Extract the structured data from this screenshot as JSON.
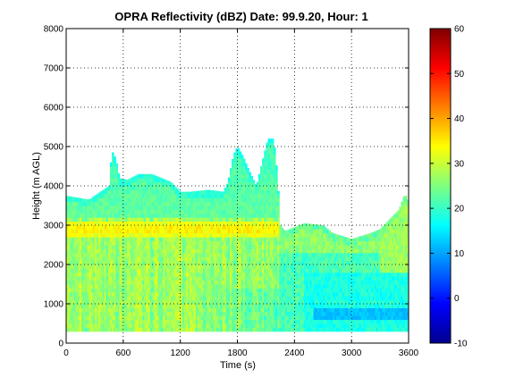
{
  "chart_data": {
    "type": "heatmap",
    "title": "OPRA Reflectivity (dBZ)  Date: 99.9.20, Hour: 1",
    "xlabel": "Time (s)",
    "ylabel": "Height (m AGL)",
    "xlim": [
      0,
      3600
    ],
    "ylim": [
      0,
      8000
    ],
    "x_ticks": [
      "0",
      "600",
      "1200",
      "1800",
      "2400",
      "3000",
      "3600"
    ],
    "y_ticks": [
      "0",
      "1000",
      "2000",
      "3000",
      "4000",
      "5000",
      "6000",
      "7000",
      "8000"
    ],
    "grid": true,
    "colorbar": {
      "range": [
        -10,
        60
      ],
      "ticks": [
        "-10",
        "0",
        "10",
        "20",
        "30",
        "40",
        "50",
        "60"
      ],
      "colormap": "jet"
    },
    "echo": {
      "base_height": 300,
      "top_profile": [
        [
          0,
          3750
        ],
        [
          120,
          3700
        ],
        [
          240,
          3650
        ],
        [
          360,
          3850
        ],
        [
          450,
          4000
        ],
        [
          480,
          4900
        ],
        [
          520,
          4700
        ],
        [
          560,
          4200
        ],
        [
          640,
          4150
        ],
        [
          760,
          4300
        ],
        [
          900,
          4300
        ],
        [
          1000,
          4200
        ],
        [
          1100,
          4100
        ],
        [
          1200,
          3850
        ],
        [
          1300,
          3850
        ],
        [
          1500,
          3900
        ],
        [
          1650,
          3850
        ],
        [
          1700,
          4100
        ],
        [
          1760,
          4800
        ],
        [
          1800,
          5000
        ],
        [
          1860,
          4750
        ],
        [
          1920,
          4400
        ],
        [
          2000,
          4000
        ],
        [
          2060,
          4600
        ],
        [
          2120,
          5200
        ],
        [
          2180,
          5200
        ],
        [
          2220,
          4300
        ],
        [
          2250,
          3000
        ],
        [
          2300,
          2850
        ],
        [
          2500,
          3050
        ],
        [
          2700,
          3000
        ],
        [
          2800,
          2800
        ],
        [
          3000,
          2650
        ],
        [
          3200,
          2800
        ],
        [
          3300,
          2900
        ],
        [
          3400,
          3150
        ],
        [
          3500,
          3400
        ],
        [
          3560,
          3800
        ],
        [
          3600,
          3600
        ]
      ],
      "base_dbz": 27,
      "bright_band": {
        "x_range": [
          0,
          2250
        ],
        "height": 2900,
        "dbz": 35
      },
      "weak_layer": {
        "x_range": [
          2600,
          3600
        ],
        "height_range": [
          650,
          850
        ],
        "dbz": 12
      }
    }
  }
}
